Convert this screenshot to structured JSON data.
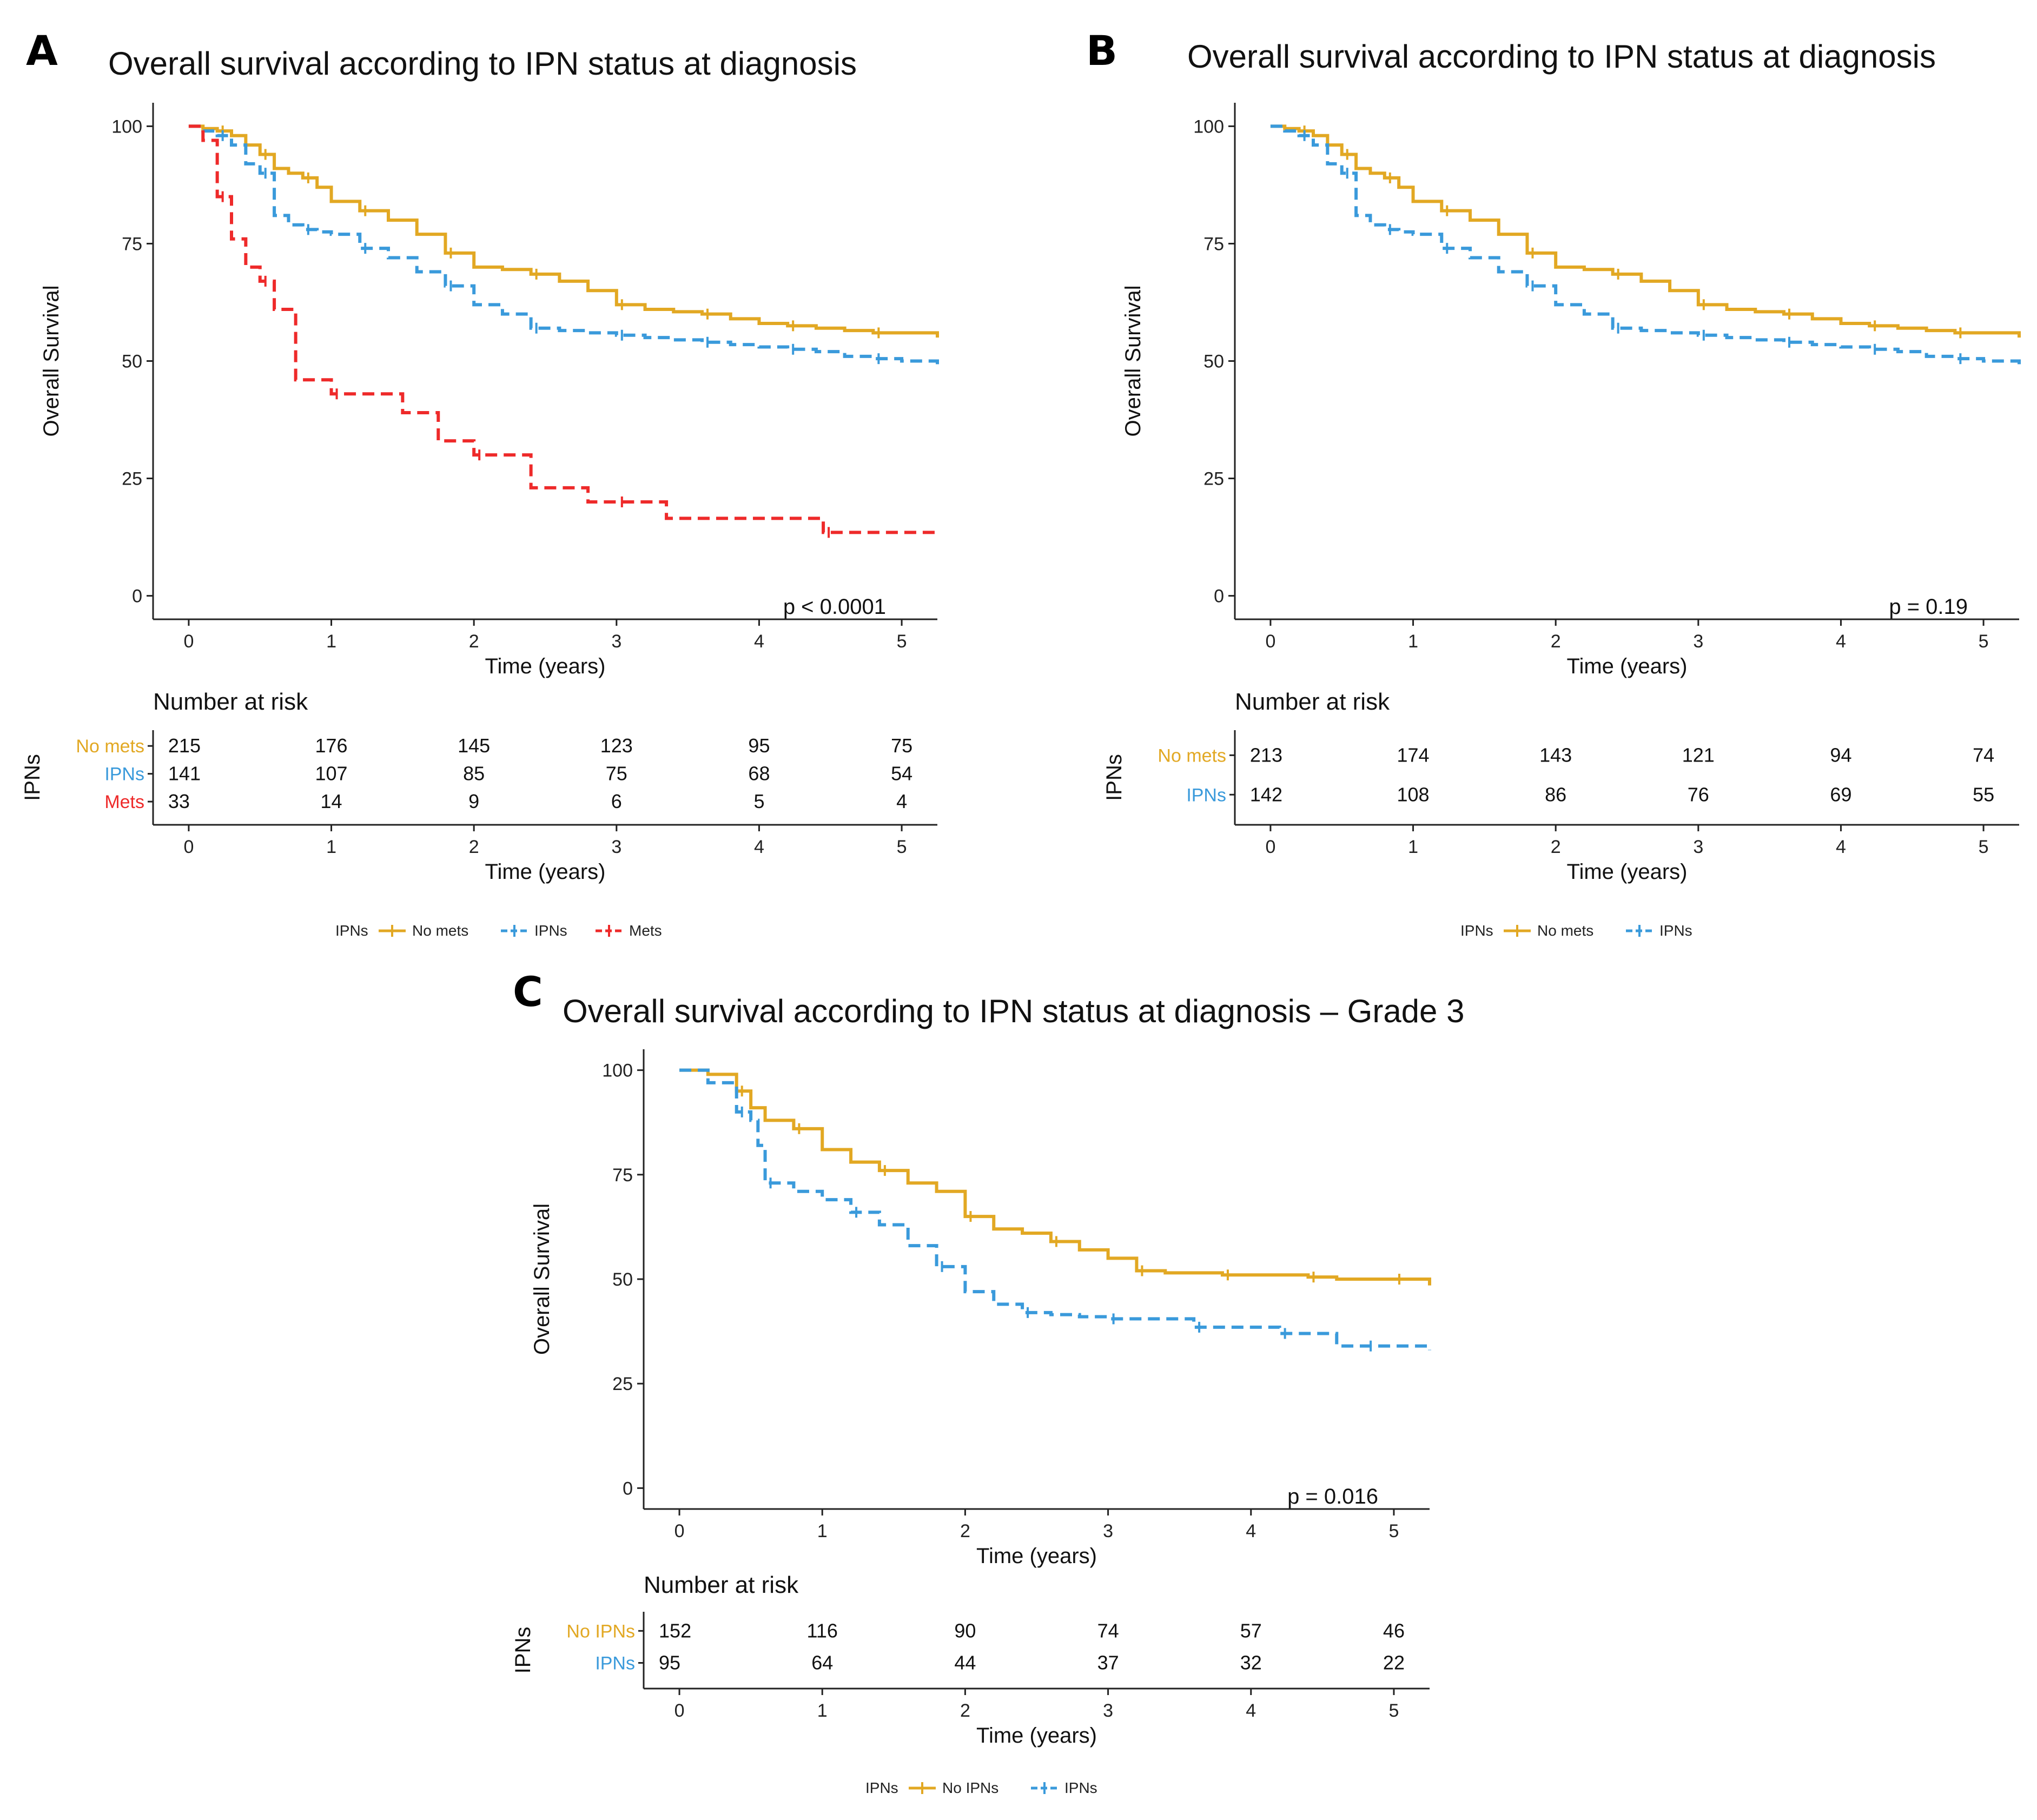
{
  "colors": {
    "no_mets": "#E2A823",
    "ipns": "#3A9ADB",
    "mets": "#EE2A2A",
    "axis": "#222222"
  },
  "chart_data": [
    {
      "type": "line",
      "panel": "A",
      "title": "Overall survival according to IPN status at diagnosis",
      "xlabel": "Time (years)",
      "ylabel": "Overall Survival",
      "xticks": [
        0,
        1,
        2,
        3,
        4,
        5
      ],
      "yticks": [
        0,
        25,
        50,
        75,
        100
      ],
      "xlim": [
        -0.25,
        5.25
      ],
      "ylim": [
        -5,
        105
      ],
      "p_value": "p < 0.0001",
      "legend": {
        "title": "IPNs",
        "entries": [
          "No mets",
          "IPNs",
          "Mets"
        ],
        "placement": "bottom"
      },
      "series": [
        {
          "name": "No mets",
          "color_key": "no_mets",
          "dashed": false,
          "x": [
            0,
            0.1,
            0.2,
            0.3,
            0.4,
            0.5,
            0.6,
            0.7,
            0.8,
            0.9,
            1.0,
            1.2,
            1.4,
            1.6,
            1.8,
            2.0,
            2.2,
            2.4,
            2.6,
            2.8,
            3.0,
            3.2,
            3.4,
            3.6,
            3.8,
            4.0,
            4.2,
            4.4,
            4.6,
            4.8,
            5.0,
            5.25
          ],
          "y": [
            100,
            99.5,
            99,
            98,
            96,
            94,
            91,
            90,
            89,
            87,
            84,
            82,
            80,
            77,
            73,
            70,
            69.5,
            68.5,
            67,
            65,
            62,
            61,
            60.5,
            60,
            59,
            58,
            57.5,
            57,
            56.5,
            56,
            56,
            55
          ]
        },
        {
          "name": "IPNs",
          "color_key": "ipns",
          "dashed": true,
          "x": [
            0,
            0.1,
            0.2,
            0.3,
            0.4,
            0.5,
            0.6,
            0.7,
            0.8,
            0.9,
            1.0,
            1.2,
            1.4,
            1.6,
            1.8,
            2.0,
            2.2,
            2.4,
            2.6,
            2.8,
            3.0,
            3.2,
            3.4,
            3.6,
            3.8,
            4.0,
            4.2,
            4.4,
            4.6,
            4.8,
            5.0,
            5.25
          ],
          "y": [
            100,
            99,
            98,
            96,
            92,
            90,
            81,
            79,
            78,
            77.5,
            77,
            74,
            72,
            69,
            66,
            62,
            60,
            57,
            56.5,
            56,
            55.5,
            55,
            54.5,
            54,
            53.5,
            53,
            52.5,
            52,
            51,
            50.5,
            50,
            48
          ]
        },
        {
          "name": "Mets",
          "color_key": "mets",
          "dashed": true,
          "x": [
            0,
            0.1,
            0.2,
            0.3,
            0.4,
            0.5,
            0.6,
            0.75,
            1.0,
            1.5,
            1.75,
            2.0,
            2.4,
            2.8,
            3.0,
            3.35,
            4.0,
            4.45,
            5.25
          ],
          "y": [
            100,
            97,
            85,
            76,
            70,
            67,
            61,
            46,
            43,
            39,
            33,
            30,
            23,
            20,
            20,
            16.5,
            16.5,
            13.5,
            13.5
          ]
        }
      ],
      "risk_table": {
        "header": "Number at risk",
        "xlabel": "Time (years)",
        "ylabel": "IPNs",
        "times": [
          0,
          1,
          2,
          3,
          4,
          5
        ],
        "rows": [
          {
            "label": "No mets",
            "color_key": "no_mets",
            "values": [
              "215",
              "176",
              "145",
              "123",
              "95",
              "75"
            ]
          },
          {
            "label": "IPNs",
            "color_key": "ipns",
            "values": [
              "141",
              "107",
              "85",
              "75",
              "68",
              "54"
            ]
          },
          {
            "label": "Mets",
            "color_key": "mets",
            "values": [
              "33",
              "14",
              "9",
              "6",
              "5",
              "4"
            ]
          }
        ]
      }
    },
    {
      "type": "line",
      "panel": "B",
      "title": "Overall survival according to IPN status at diagnosis",
      "xlabel": "Time (years)",
      "ylabel": "Overall Survival",
      "xticks": [
        0,
        1,
        2,
        3,
        4,
        5
      ],
      "yticks": [
        0,
        25,
        50,
        75,
        100
      ],
      "xlim": [
        -0.25,
        5.25
      ],
      "ylim": [
        -5,
        105
      ],
      "p_value": "p = 0.19",
      "legend": {
        "title": "IPNs",
        "entries": [
          "No mets",
          "IPNs"
        ],
        "placement": "bottom"
      },
      "series": [
        {
          "name": "No mets",
          "color_key": "no_mets",
          "dashed": false,
          "x": [
            0,
            0.1,
            0.2,
            0.3,
            0.4,
            0.5,
            0.6,
            0.7,
            0.8,
            0.9,
            1.0,
            1.2,
            1.4,
            1.6,
            1.8,
            2.0,
            2.2,
            2.4,
            2.6,
            2.8,
            3.0,
            3.2,
            3.4,
            3.6,
            3.8,
            4.0,
            4.2,
            4.4,
            4.6,
            4.8,
            5.0,
            5.25
          ],
          "y": [
            100,
            99.5,
            99,
            98,
            96,
            94,
            91,
            90,
            89,
            87,
            84,
            82,
            80,
            77,
            73,
            70,
            69.5,
            68.5,
            67,
            65,
            62,
            61,
            60.5,
            60,
            59,
            58,
            57.5,
            57,
            56.5,
            56,
            56,
            55
          ]
        },
        {
          "name": "IPNs",
          "color_key": "ipns",
          "dashed": true,
          "x": [
            0,
            0.1,
            0.2,
            0.3,
            0.4,
            0.5,
            0.6,
            0.7,
            0.8,
            0.9,
            1.0,
            1.2,
            1.4,
            1.6,
            1.8,
            2.0,
            2.2,
            2.4,
            2.6,
            2.8,
            3.0,
            3.2,
            3.4,
            3.6,
            3.8,
            4.0,
            4.2,
            4.4,
            4.6,
            4.8,
            5.0,
            5.25
          ],
          "y": [
            100,
            99,
            98,
            96,
            92,
            90,
            81,
            79,
            78,
            77.5,
            77,
            74,
            72,
            69,
            66,
            62,
            60,
            57,
            56.5,
            56,
            55.5,
            55,
            54.5,
            54,
            53.5,
            53,
            52.5,
            52,
            51,
            50.5,
            50,
            48
          ]
        }
      ],
      "risk_table": {
        "header": "Number at risk",
        "xlabel": "Time (years)",
        "ylabel": "IPNs",
        "times": [
          0,
          1,
          2,
          3,
          4,
          5
        ],
        "rows": [
          {
            "label": "No mets",
            "color_key": "no_mets",
            "values": [
              "213",
              "174",
              "143",
              "121",
              "94",
              "74"
            ]
          },
          {
            "label": "IPNs",
            "color_key": "ipns",
            "values": [
              "142",
              "108",
              "86",
              "76",
              "69",
              "55"
            ]
          }
        ]
      }
    },
    {
      "type": "line",
      "panel": "C",
      "title": "Overall survival according to IPN status at diagnosis – Grade 3",
      "xlabel": "Time (years)",
      "ylabel": "Overall Survival",
      "xticks": [
        0,
        1,
        2,
        3,
        4,
        5
      ],
      "yticks": [
        0,
        25,
        50,
        75,
        100
      ],
      "xlim": [
        -0.25,
        5.25
      ],
      "ylim": [
        -5,
        105
      ],
      "p_value": "p = 0.016",
      "legend": {
        "title": "IPNs",
        "entries": [
          "No IPNs",
          "IPNs"
        ],
        "placement": "bottom"
      },
      "series": [
        {
          "name": "No IPNs",
          "color_key": "no_mets",
          "dashed": false,
          "x": [
            0,
            0.2,
            0.4,
            0.5,
            0.6,
            0.8,
            1.0,
            1.2,
            1.4,
            1.6,
            1.8,
            2.0,
            2.2,
            2.4,
            2.6,
            2.8,
            3.0,
            3.2,
            3.4,
            3.6,
            3.8,
            4.0,
            4.2,
            4.4,
            4.6,
            4.8,
            5.0,
            5.25
          ],
          "y": [
            100,
            99,
            95,
            91,
            88,
            86,
            81,
            78,
            76,
            73,
            71,
            65,
            62,
            61,
            59,
            57,
            55,
            52,
            51.5,
            51.5,
            51,
            51,
            51,
            50.5,
            50,
            50,
            50,
            48.5
          ]
        },
        {
          "name": "IPNs",
          "color_key": "ipns",
          "dashed": true,
          "x": [
            0,
            0.2,
            0.4,
            0.5,
            0.55,
            0.6,
            0.8,
            1.0,
            1.2,
            1.4,
            1.6,
            1.8,
            2.0,
            2.2,
            2.4,
            2.6,
            2.8,
            3.0,
            3.2,
            3.4,
            3.6,
            3.8,
            4.0,
            4.2,
            4.4,
            4.6,
            4.8,
            5.0,
            5.25
          ],
          "y": [
            100,
            97,
            90,
            88,
            82,
            73,
            71,
            69,
            66,
            63,
            58,
            53,
            47,
            44,
            42,
            41.5,
            41,
            40.5,
            40.5,
            40.5,
            38.5,
            38.5,
            38.5,
            37,
            37,
            34,
            34,
            34,
            33
          ]
        }
      ],
      "risk_table": {
        "header": "Number at risk",
        "xlabel": "Time (years)",
        "ylabel": "IPNs",
        "times": [
          0,
          1,
          2,
          3,
          4,
          5
        ],
        "rows": [
          {
            "label": "No IPNs",
            "color_key": "no_mets",
            "values": [
              "152",
              "116",
              "90",
              "74",
              "57",
              "46"
            ]
          },
          {
            "label": "IPNs",
            "color_key": "ipns",
            "values": [
              "95",
              "64",
              "44",
              "37",
              "32",
              "22"
            ]
          }
        ]
      }
    }
  ]
}
